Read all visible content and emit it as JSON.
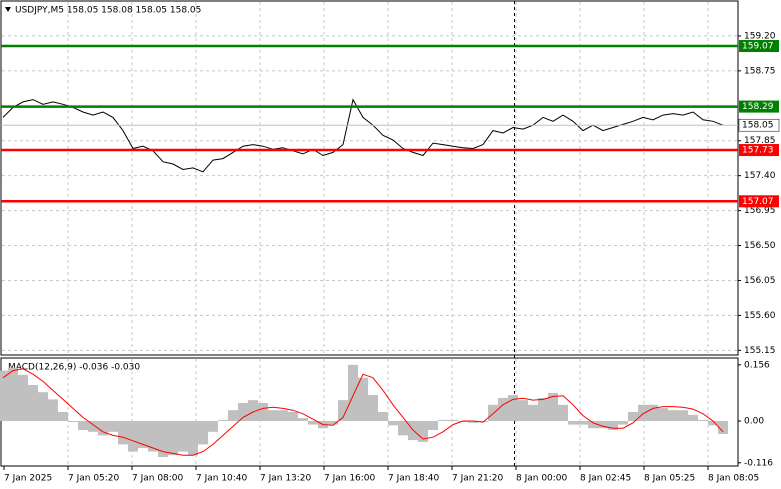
{
  "chart_data": [
    {
      "type": "line",
      "title": "USDJPY,M5  158.05 158.08 158.05 158.05",
      "color": "#000000",
      "values": [
        158.15,
        158.28,
        158.35,
        158.38,
        158.32,
        158.35,
        158.32,
        158.28,
        158.22,
        158.18,
        158.22,
        158.15,
        157.98,
        157.75,
        157.78,
        157.72,
        157.58,
        157.55,
        157.48,
        157.5,
        157.45,
        157.6,
        157.62,
        157.7,
        157.78,
        157.8,
        157.78,
        157.74,
        157.76,
        157.72,
        157.68,
        157.74,
        157.66,
        157.7,
        157.8,
        158.38,
        158.15,
        158.05,
        157.92,
        157.86,
        157.75,
        157.7,
        157.66,
        157.82,
        157.8,
        157.78,
        157.76,
        157.75,
        157.8,
        157.98,
        157.95,
        158.02,
        158.0,
        158.05,
        158.15,
        158.1,
        158.18,
        158.1,
        157.98,
        158.05,
        157.98,
        158.02,
        158.06,
        158.1,
        158.15,
        158.12,
        158.18,
        158.2,
        158.18,
        158.22,
        158.12,
        158.1,
        158.05
      ],
      "ylim": [
        155.09,
        159.65
      ],
      "yticks": [
        155.15,
        {
          "value": 155.6,
          "label": "155.60"
        },
        156.05,
        {
          "value": 156.5,
          "label": "156.50"
        },
        156.95,
        {
          "value": 157.4,
          "label": "157.40"
        },
        157.85,
        158.75,
        {
          "value": 159.2,
          "label": "159.20"
        }
      ],
      "grid": true,
      "levels": [
        {
          "value": 159.07,
          "color": "#008000"
        },
        {
          "value": 158.29,
          "color": "#008000"
        },
        {
          "value": 157.73,
          "color": "#ff0000"
        },
        {
          "value": 157.07,
          "color": "#ff0000"
        }
      ],
      "last_price": 158.05
    },
    {
      "type": "macd",
      "title": "MACD(12,26,9) -0.036 -0.030",
      "series": [
        {
          "kind": "bar",
          "color": "#c0c0c0",
          "values": [
            0.14,
            0.148,
            0.128,
            0.1,
            0.08,
            0.06,
            0.025,
            -0.003,
            -0.025,
            -0.03,
            -0.04,
            -0.03,
            -0.065,
            -0.085,
            -0.075,
            -0.085,
            -0.1,
            -0.095,
            -0.085,
            -0.095,
            -0.065,
            -0.03,
            0.003,
            0.03,
            0.05,
            0.058,
            0.05,
            0.03,
            0.03,
            0.025,
            0.008,
            -0.01,
            -0.02,
            -0.01,
            0.058,
            0.156,
            0.12,
            0.072,
            0.025,
            -0.012,
            -0.04,
            -0.053,
            -0.058,
            -0.025,
            0.003,
            0.003,
            -0.003,
            -0.005,
            -0.003,
            0.045,
            0.064,
            0.072,
            0.058,
            0.045,
            0.064,
            0.078,
            0.045,
            -0.01,
            -0.01,
            -0.02,
            -0.02,
            -0.025,
            -0.01,
            0.025,
            0.045,
            0.045,
            0.036,
            0.03,
            0.03,
            0.017,
            0.003,
            -0.012,
            -0.036
          ]
        },
        {
          "kind": "line",
          "color": "#ff0000",
          "values": [
            0.12,
            0.14,
            0.145,
            0.13,
            0.11,
            0.085,
            0.06,
            0.035,
            0.01,
            -0.01,
            -0.03,
            -0.04,
            -0.045,
            -0.055,
            -0.065,
            -0.075,
            -0.085,
            -0.09,
            -0.095,
            -0.095,
            -0.085,
            -0.065,
            -0.04,
            -0.015,
            0.01,
            0.025,
            0.035,
            0.038,
            0.035,
            0.03,
            0.02,
            0.005,
            -0.01,
            -0.012,
            0.01,
            0.07,
            0.13,
            0.12,
            0.085,
            0.045,
            0.01,
            -0.025,
            -0.05,
            -0.045,
            -0.03,
            -0.01,
            0.0,
            0.0,
            -0.003,
            0.02,
            0.045,
            0.06,
            0.063,
            0.058,
            0.06,
            0.068,
            0.07,
            0.045,
            0.015,
            -0.005,
            -0.015,
            -0.02,
            -0.02,
            -0.005,
            0.02,
            0.035,
            0.04,
            0.04,
            0.038,
            0.033,
            0.02,
            0.0,
            -0.03
          ]
        }
      ],
      "ylim": [
        -0.125,
        0.175
      ],
      "yticks": [
        -0.116,
        {
          "value": 0,
          "label": "0.00"
        },
        0.156
      ]
    }
  ],
  "x_axis_labels": [
    "7 Jan 2025",
    "7 Jan 05:20",
    "7 Jan 08:00",
    "7 Jan 10:40",
    "7 Jan 13:20",
    "7 Jan 16:00",
    "7 Jan 18:40",
    "7 Jan 21:20",
    "8 Jan 00:00",
    "8 Jan 02:45",
    "8 Jan 05:25",
    "8 Jan 08:05"
  ]
}
